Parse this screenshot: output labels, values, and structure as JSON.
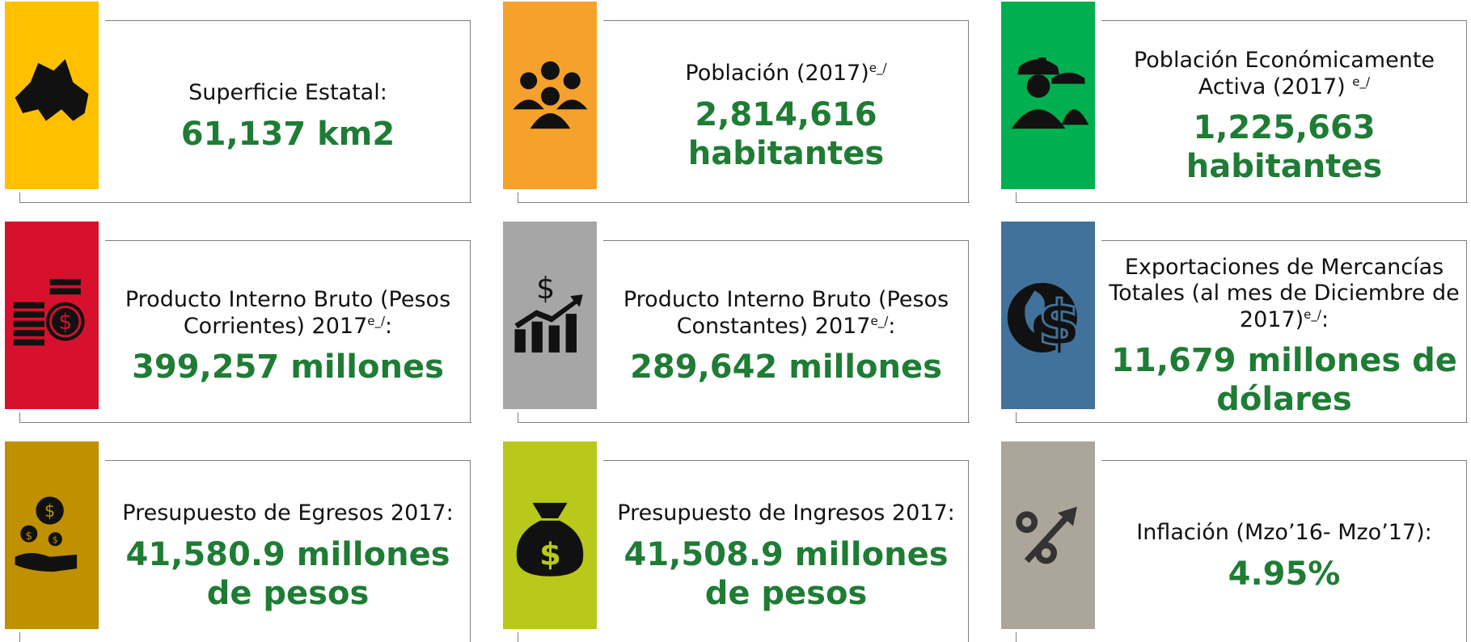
{
  "cards": [
    {
      "label": "Superficie Estatal:",
      "value": "61,137 km2",
      "color": "#ffc000"
    },
    {
      "label": "Población (2017)",
      "sup": "e_/",
      "value": "2,814,616 habitantes",
      "color": "#f5a12b"
    },
    {
      "label": "Población Económicamente Activa (2017) ",
      "sup": "e_/",
      "value": "1,225,663 habitantes",
      "color": "#00b050"
    },
    {
      "label": "Producto Interno Bruto (Pesos Corrientes) 2017",
      "sup": "e_/",
      "after": ":",
      "value": "399,257  millones",
      "color": "#d7112d"
    },
    {
      "label": "Producto Interno Bruto (Pesos Constantes) 2017",
      "sup": "e_/",
      "after": ":",
      "value": "289,642  millones",
      "color": "#a6a6a6"
    },
    {
      "label": "Exportaciones de Mercancías Totales (al mes de Diciembre de 2017)",
      "sup": "e_/",
      "after": ":",
      "value": "11,679 millones de dólares",
      "color": "#41729c"
    },
    {
      "label": "Presupuesto de Egresos 2017:",
      "value": "41,580.9 millones de pesos",
      "color": "#bf9000"
    },
    {
      "label": "Presupuesto de Ingresos 2017:",
      "value": "41,508.9 millones de pesos",
      "color": "#b8c91b"
    },
    {
      "label": "Inflación  (Mzo’16- Mzo’17):",
      "value": "4.95%",
      "color": "#aca69a"
    }
  ]
}
